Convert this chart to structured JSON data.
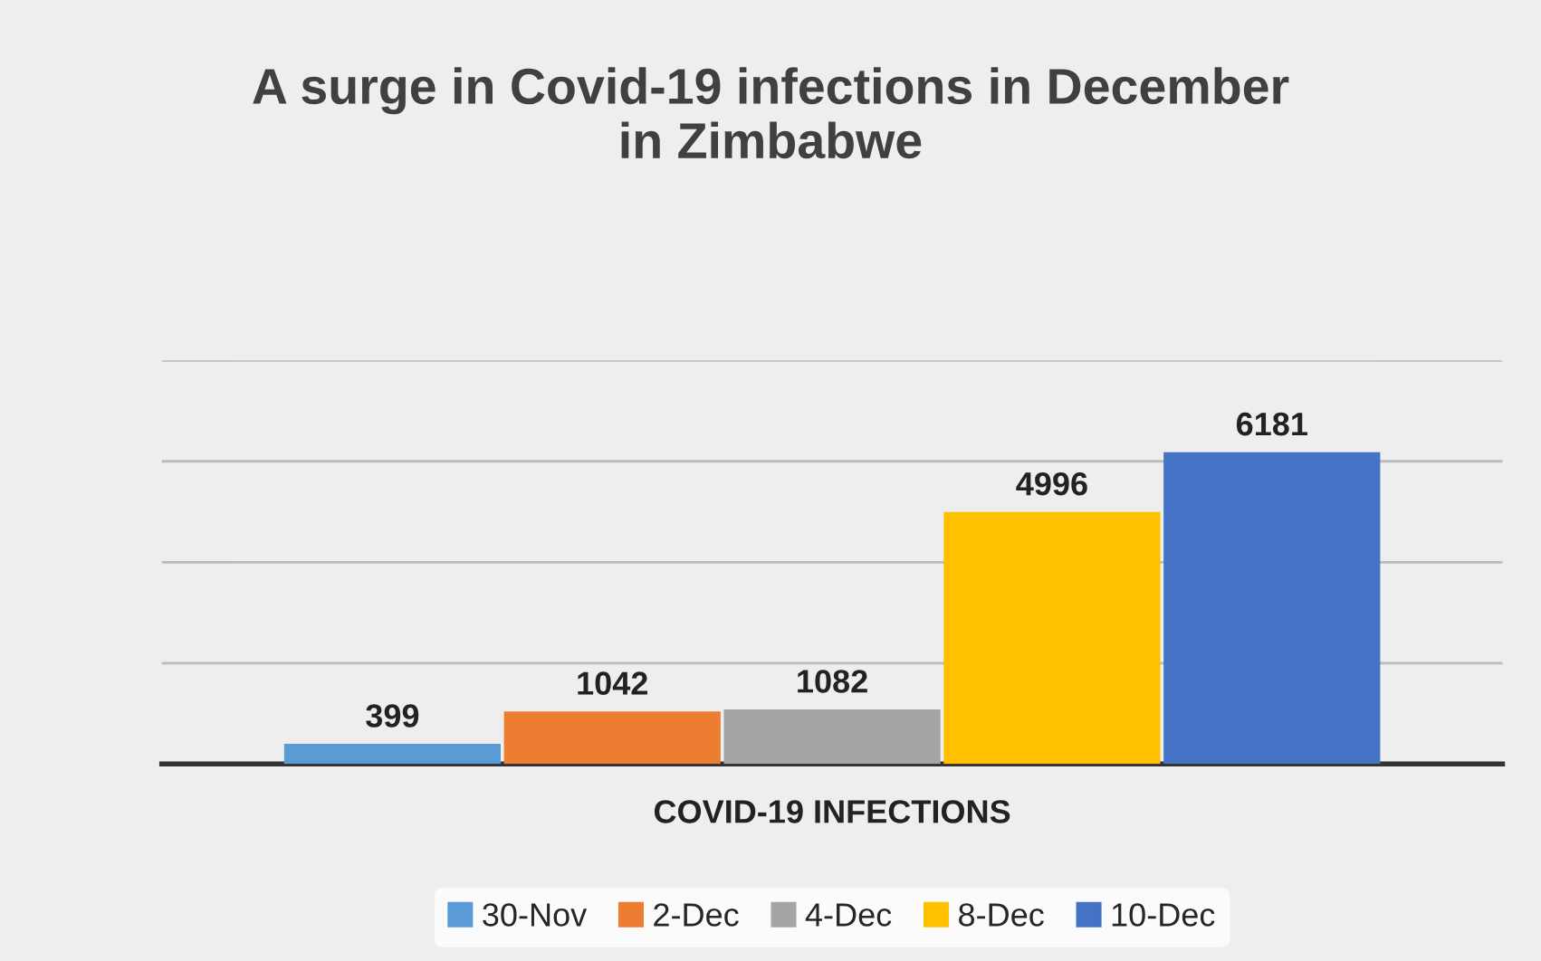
{
  "chart_data": {
    "type": "bar",
    "title": "A surge in Covid-19 infections in December\nin Zimbabwe",
    "xlabel": "COVID-19 INFECTIONS",
    "categories": [
      null
    ],
    "series": [
      {
        "name": "30-Nov",
        "color": "#5b9bd5",
        "values": [
          399
        ]
      },
      {
        "name": "2-Dec",
        "color": "#ed7d31",
        "values": [
          1042
        ]
      },
      {
        "name": "4-Dec",
        "color": "#a5a5a5",
        "values": [
          1082
        ]
      },
      {
        "name": "8-Dec",
        "color": "#ffc000",
        "values": [
          4996
        ]
      },
      {
        "name": "10-Dec",
        "color": "#4472c4",
        "values": [
          6181
        ]
      }
    ],
    "ylim": [
      0,
      8000
    ],
    "yticks": [
      {
        "value": 0,
        "label": null
      },
      {
        "value": 2000,
        "label": null
      },
      {
        "value": 4000,
        "label": null
      },
      {
        "value": 6000,
        "label": null
      },
      {
        "value": 8000,
        "label": null
      }
    ],
    "grid": "y",
    "legend": "bottom",
    "data_labels": true,
    "tick_labels": false
  }
}
